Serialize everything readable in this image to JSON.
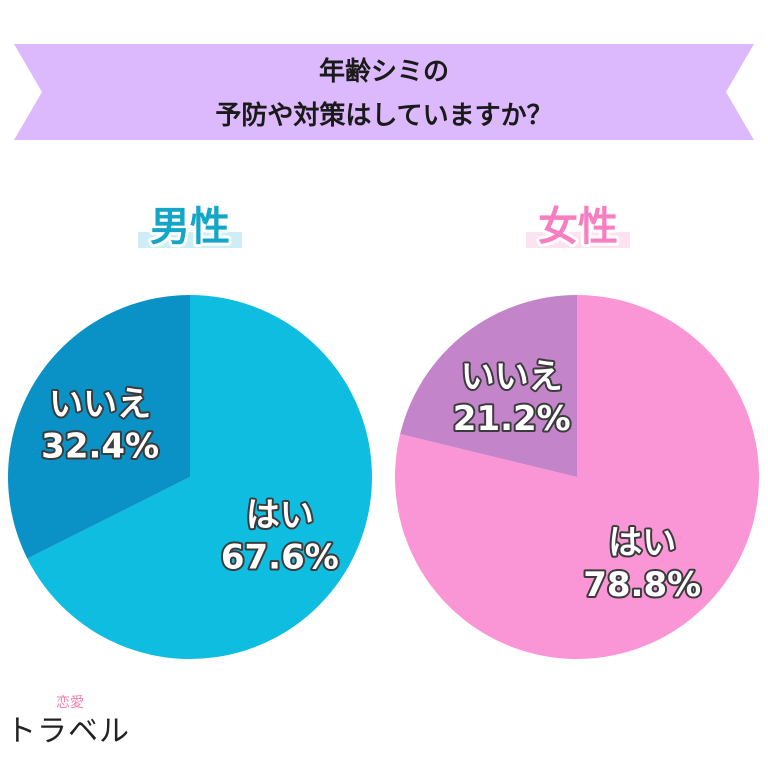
{
  "banner": {
    "line1": "年齢シミの",
    "line2": "予防や対策はしていますか？",
    "color": "#dcb8fc"
  },
  "chart_data": [
    {
      "type": "pie",
      "title": "男性",
      "title_color": "#14a6c6",
      "title_highlight": "#cdeef5",
      "slices": [
        {
          "label": "はい",
          "value": 67.6,
          "value_text": "67.6%",
          "color": "#0fbde0"
        },
        {
          "label": "いいえ",
          "value": 32.4,
          "value_text": "32.4%",
          "color": "#0a92c6"
        }
      ]
    },
    {
      "type": "pie",
      "title": "女性",
      "title_color": "#f77fc1",
      "title_highlight": "#fde2f1",
      "slices": [
        {
          "label": "はい",
          "value": 78.8,
          "value_text": "78.8%",
          "color": "#fa95d6"
        },
        {
          "label": "いいえ",
          "value": 21.2,
          "value_text": "21.2%",
          "color": "#c384c9"
        }
      ]
    }
  ],
  "logo": {
    "sub": "恋愛",
    "main": "トラベル"
  }
}
